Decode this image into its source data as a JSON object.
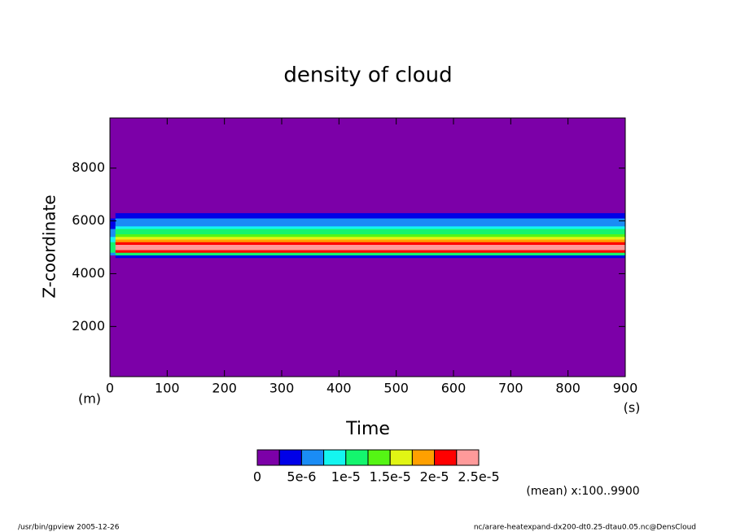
{
  "chart_data": {
    "type": "heatmap",
    "title": "density of cloud",
    "x_label": "Time",
    "y_label": "Z-coordinate",
    "x_unit": "(s)",
    "y_unit": "(m)",
    "annotation": "(mean) x:100..9900",
    "footer_left": "/usr/bin/gpview  2005-12-26",
    "footer_right": "nc/arare-heatexpand-dx200-dt0.25-dtau0.05.nc@DensCloud",
    "xlim": [
      0,
      900
    ],
    "ylim": [
      100,
      9900
    ],
    "xticks": [
      0,
      100,
      200,
      300,
      400,
      500,
      600,
      700,
      800,
      900
    ],
    "yticks": [
      2000,
      4000,
      6000,
      8000
    ],
    "x_edges": [
      0,
      10,
      900
    ],
    "y_edges": [
      100,
      4500,
      4600,
      4700,
      4800,
      4900,
      5000,
      5100,
      5200,
      5300,
      5400,
      5500,
      5600,
      5700,
      5800,
      5900,
      6000,
      6100,
      6200,
      6300,
      6400,
      9900
    ],
    "values": [
      [
        0,
        0,
        2e-06,
        6e-06,
        1e-05,
        1.2e-05,
        1.2e-05,
        1e-05,
        9e-06,
        8e-06,
        7e-06,
        6e-06,
        5e-06,
        4e-06,
        3.5e-06,
        3e-06,
        2.5e-06,
        1e-06,
        0,
        0,
        0
      ],
      [
        0,
        1e-06,
        3e-06,
        1.1e-05,
        2.1e-05,
        2.4e-05,
        2.4e-05,
        2.1e-05,
        1.9e-05,
        1.6e-05,
        1.4e-05,
        1.2e-05,
        1e-05,
        8.5e-06,
        7e-06,
        6e-06,
        5e-06,
        3.5e-06,
        2.6e-06,
        1e-06,
        0
      ]
    ],
    "colorbar": {
      "levels": [
        0,
        2.5e-06,
        5e-06,
        7.5e-06,
        1e-05,
        1.25e-05,
        1.5e-05,
        1.75e-05,
        2e-05,
        2.25e-05,
        2.5e-05
      ],
      "colors": [
        "#7c00a8",
        "#0000e8",
        "#1a8cf5",
        "#14f5f0",
        "#14f56e",
        "#55f514",
        "#e1f514",
        "#ffa000",
        "#ff0000",
        "#ff9a9a"
      ],
      "ticks": [
        0,
        {
          "value": 5e-06,
          "label": "5e-6"
        },
        {
          "value": 1e-05,
          "label": "1e-5"
        },
        {
          "value": 1.5e-05,
          "label": "1.5e-5"
        },
        {
          "value": 2e-05,
          "label": "2e-5"
        },
        {
          "value": 2.5e-05,
          "label": "2.5e-5"
        }
      ]
    }
  }
}
